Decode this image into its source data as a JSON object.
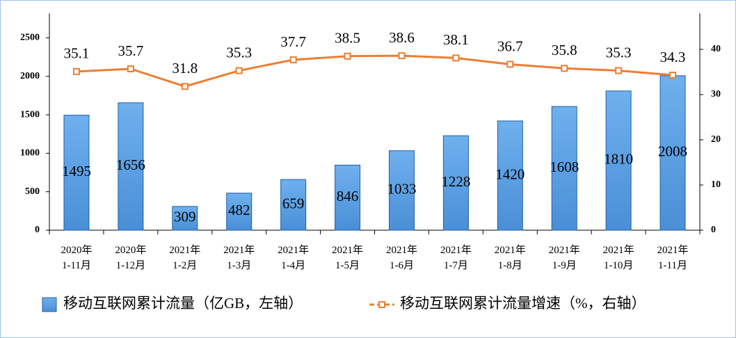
{
  "chart_data": {
    "type": "bar",
    "categories": [
      "2020年\n1-11月",
      "2020年\n1-12月",
      "2021年\n1-2月",
      "2021年\n1-3月",
      "2021年\n1-4月",
      "2021年\n1-5月",
      "2021年\n1-6月",
      "2021年\n1-7月",
      "2021年\n1-8月",
      "2021年\n1-9月",
      "2021年\n1-10月",
      "2021年\n1-11月"
    ],
    "series": [
      {
        "name": "移动互联网累计流量（亿GB，左轴）",
        "type": "bar",
        "color": "#5aa0e0",
        "values": [
          1495,
          1656,
          309,
          482,
          659,
          846,
          1033,
          1228,
          1420,
          1608,
          1810,
          2008
        ]
      },
      {
        "name": "移动互联网累计流量增速（%，右轴）",
        "type": "line",
        "axis": "y2",
        "color": "#ed7d31",
        "values": [
          35.1,
          35.7,
          31.8,
          35.3,
          37.7,
          38.5,
          38.6,
          38.1,
          36.7,
          35.8,
          35.3,
          34.3
        ]
      }
    ],
    "ylim": [
      0,
      2820
    ],
    "yticks": [
      0,
      500,
      1000,
      1500,
      2000,
      2500
    ],
    "y2lim": [
      0,
      48
    ],
    "y2ticks": [
      0,
      10,
      20,
      30,
      40
    ],
    "legend": "bottom"
  }
}
